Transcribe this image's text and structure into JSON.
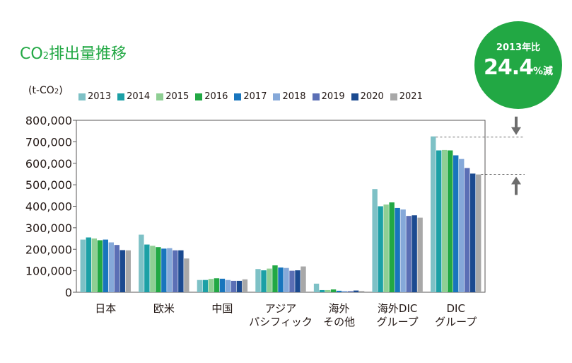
{
  "title": {
    "main": "CO",
    "subscript": "2",
    "rest": "排出量推移"
  },
  "unit": {
    "open": "(t-CO",
    "subscript": "2",
    "close": ")"
  },
  "badge": {
    "year_label": "2013年比",
    "value": "24.4",
    "percent": "%",
    "suffix": "減"
  },
  "colors": {
    "accent": "#22a844",
    "series": [
      "#7ec1c6",
      "#1ca0a6",
      "#8fcf94",
      "#22a844",
      "#1875bd",
      "#86a9d9",
      "#5b6fb5",
      "#1b4a90",
      "#a8a8a8"
    ]
  },
  "chart_data": {
    "type": "bar",
    "categories": [
      [
        "日本"
      ],
      [
        "欧米"
      ],
      [
        "中国"
      ],
      [
        "アジア",
        "パシフィック"
      ],
      [
        "海外",
        "その他"
      ],
      [
        "海外DIC",
        "グループ"
      ],
      [
        "DIC",
        "グループ"
      ]
    ],
    "series": [
      {
        "name": "2013",
        "values": [
          245000,
          268000,
          57000,
          108000,
          40000,
          480000,
          725000
        ]
      },
      {
        "name": "2014",
        "values": [
          255000,
          222000,
          57000,
          102000,
          10000,
          400000,
          660000
        ]
      },
      {
        "name": "2015",
        "values": [
          250000,
          216000,
          62000,
          110000,
          10000,
          408000,
          662000
        ]
      },
      {
        "name": "2016",
        "values": [
          242000,
          210000,
          65000,
          125000,
          13000,
          418000,
          660000
        ]
      },
      {
        "name": "2017",
        "values": [
          245000,
          203000,
          63000,
          115000,
          7000,
          392000,
          637000
        ]
      },
      {
        "name": "2018",
        "values": [
          232000,
          205000,
          57000,
          113000,
          6000,
          385000,
          620000
        ]
      },
      {
        "name": "2019",
        "values": [
          220000,
          195000,
          53000,
          100000,
          5000,
          355000,
          578000
        ]
      },
      {
        "name": "2020",
        "values": [
          196000,
          195000,
          53000,
          102000,
          8000,
          358000,
          552000
        ]
      },
      {
        "name": "2021",
        "values": [
          195000,
          157000,
          60000,
          120000,
          6000,
          347000,
          548000
        ]
      }
    ],
    "ylim": [
      0,
      800000
    ],
    "yticks": [
      "0",
      "100,000",
      "200,000",
      "300,000",
      "400,000",
      "500,000",
      "600,000",
      "700,000",
      "800,000"
    ],
    "grid": false,
    "legend_placement": "top"
  }
}
